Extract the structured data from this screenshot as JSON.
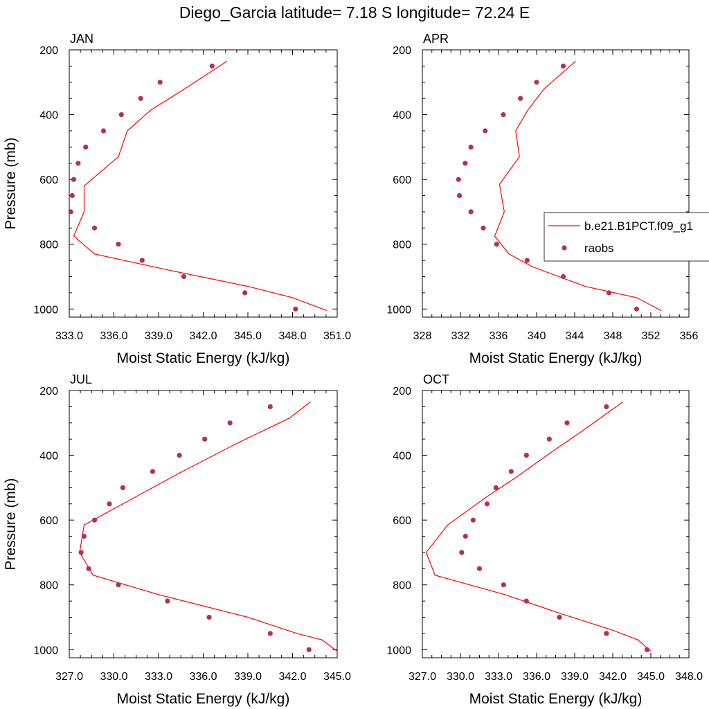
{
  "figure": {
    "title": "Diego_Garcia  latitude= 7.18 S longitude= 72.24 E"
  },
  "legend": {
    "model_label": "b.e21.B1PCT.f09_g1",
    "obs_label": "raobs",
    "model_color": "#ff0000",
    "obs_color": "#b03060"
  },
  "chart_data": [
    {
      "type": "line",
      "panel": "JAN",
      "xlabel": "Moist Static Energy (kJ/kg)",
      "ylabel": "Pressure (mb)",
      "xlim": [
        333.0,
        351.0
      ],
      "ylim": [
        200,
        1025
      ],
      "xticks": [
        "333.0",
        "336.0",
        "339.0",
        "342.0",
        "345.0",
        "348.0",
        "351.0"
      ],
      "yticks": [
        "200",
        "400",
        "600",
        "800",
        "1000"
      ],
      "model": {
        "pressure": [
          235,
          325,
          385,
          450,
          530,
          620,
          700,
          775,
          830,
          880,
          930,
          965,
          1005
        ],
        "mse": [
          343.6,
          340.6,
          338.5,
          336.9,
          336.3,
          334.0,
          334.0,
          333.3,
          334.7,
          339.7,
          345.0,
          348.0,
          350.3
        ]
      },
      "raobs": {
        "pressure": [
          250,
          300,
          350,
          400,
          450,
          500,
          550,
          600,
          650,
          700,
          750,
          800,
          850,
          900,
          950,
          1000
        ],
        "mse": [
          342.6,
          339.1,
          337.8,
          336.5,
          335.3,
          334.1,
          333.6,
          333.3,
          333.2,
          333.1,
          334.7,
          336.3,
          337.9,
          340.7,
          344.8,
          348.2
        ]
      }
    },
    {
      "type": "line",
      "panel": "APR",
      "xlabel": "Moist Static Energy (kJ/kg)",
      "ylabel": "",
      "xlim": [
        328,
        356
      ],
      "ylim": [
        200,
        1025
      ],
      "xticks": [
        "328",
        "332",
        "336",
        "340",
        "344",
        "348",
        "352",
        "356"
      ],
      "yticks": [
        "200",
        "400",
        "600",
        "800",
        "1000"
      ],
      "model": {
        "pressure": [
          235,
          320,
          385,
          450,
          530,
          615,
          700,
          775,
          830,
          870,
          930,
          965,
          1005
        ],
        "mse": [
          344.1,
          340.8,
          339.1,
          337.8,
          338.2,
          336.1,
          336.6,
          335.6,
          337.1,
          339.6,
          345.1,
          350.5,
          353.1
        ]
      },
      "raobs": {
        "pressure": [
          250,
          300,
          350,
          400,
          450,
          500,
          550,
          600,
          650,
          700,
          750,
          800,
          850,
          900,
          950,
          1000
        ],
        "mse": [
          342.8,
          340.0,
          338.3,
          336.5,
          334.6,
          333.1,
          332.5,
          331.8,
          331.9,
          333.1,
          334.4,
          335.8,
          339.0,
          342.8,
          347.6,
          350.5
        ]
      }
    },
    {
      "type": "line",
      "panel": "JUL",
      "xlabel": "Moist Static Energy (kJ/kg)",
      "ylabel": "Pressure (mb)",
      "xlim": [
        327.0,
        345.0
      ],
      "ylim": [
        200,
        1025
      ],
      "xticks": [
        "327.0",
        "330.0",
        "333.0",
        "336.0",
        "339.0",
        "342.0",
        "345.0"
      ],
      "yticks": [
        "200",
        "400",
        "600",
        "800",
        "1000"
      ],
      "model": {
        "pressure": [
          235,
          285,
          360,
          450,
          530,
          615,
          700,
          770,
          830,
          900,
          950,
          970,
          1005
        ],
        "mse": [
          343.2,
          341.8,
          338.4,
          334.6,
          331.4,
          328.0,
          327.7,
          328.6,
          333.0,
          339.0,
          342.3,
          344.0,
          345.0
        ]
      },
      "raobs": {
        "pressure": [
          250,
          300,
          350,
          400,
          450,
          500,
          550,
          600,
          650,
          700,
          750,
          800,
          850,
          900,
          950,
          1000
        ],
        "mse": [
          340.5,
          337.8,
          336.1,
          334.4,
          332.6,
          330.6,
          329.7,
          328.7,
          328.0,
          327.8,
          328.3,
          330.3,
          333.6,
          336.4,
          340.5,
          343.1
        ]
      }
    },
    {
      "type": "line",
      "panel": "OCT",
      "xlabel": "Moist Static Energy (kJ/kg)",
      "ylabel": "",
      "xlim": [
        327.0,
        348.0
      ],
      "ylim": [
        200,
        1025
      ],
      "xticks": [
        "327.0",
        "330.0",
        "333.0",
        "336.0",
        "339.0",
        "342.0",
        "345.0",
        "348.0"
      ],
      "yticks": [
        "200",
        "400",
        "600",
        "800",
        "1000"
      ],
      "model": {
        "pressure": [
          235,
          325,
          395,
          465,
          530,
          615,
          700,
          770,
          830,
          890,
          940,
          970,
          1005
        ],
        "mse": [
          342.8,
          339.6,
          337.0,
          334.5,
          332.0,
          329.0,
          327.3,
          328.0,
          333.5,
          338.0,
          342.0,
          344.0,
          345.0
        ]
      },
      "raobs": {
        "pressure": [
          250,
          300,
          350,
          400,
          450,
          500,
          550,
          600,
          650,
          700,
          750,
          800,
          850,
          900,
          950,
          1000
        ],
        "mse": [
          341.5,
          338.4,
          337.0,
          335.2,
          334.0,
          332.8,
          332.1,
          331.0,
          330.4,
          330.1,
          331.5,
          333.4,
          335.2,
          337.8,
          341.5,
          344.7
        ]
      }
    }
  ]
}
